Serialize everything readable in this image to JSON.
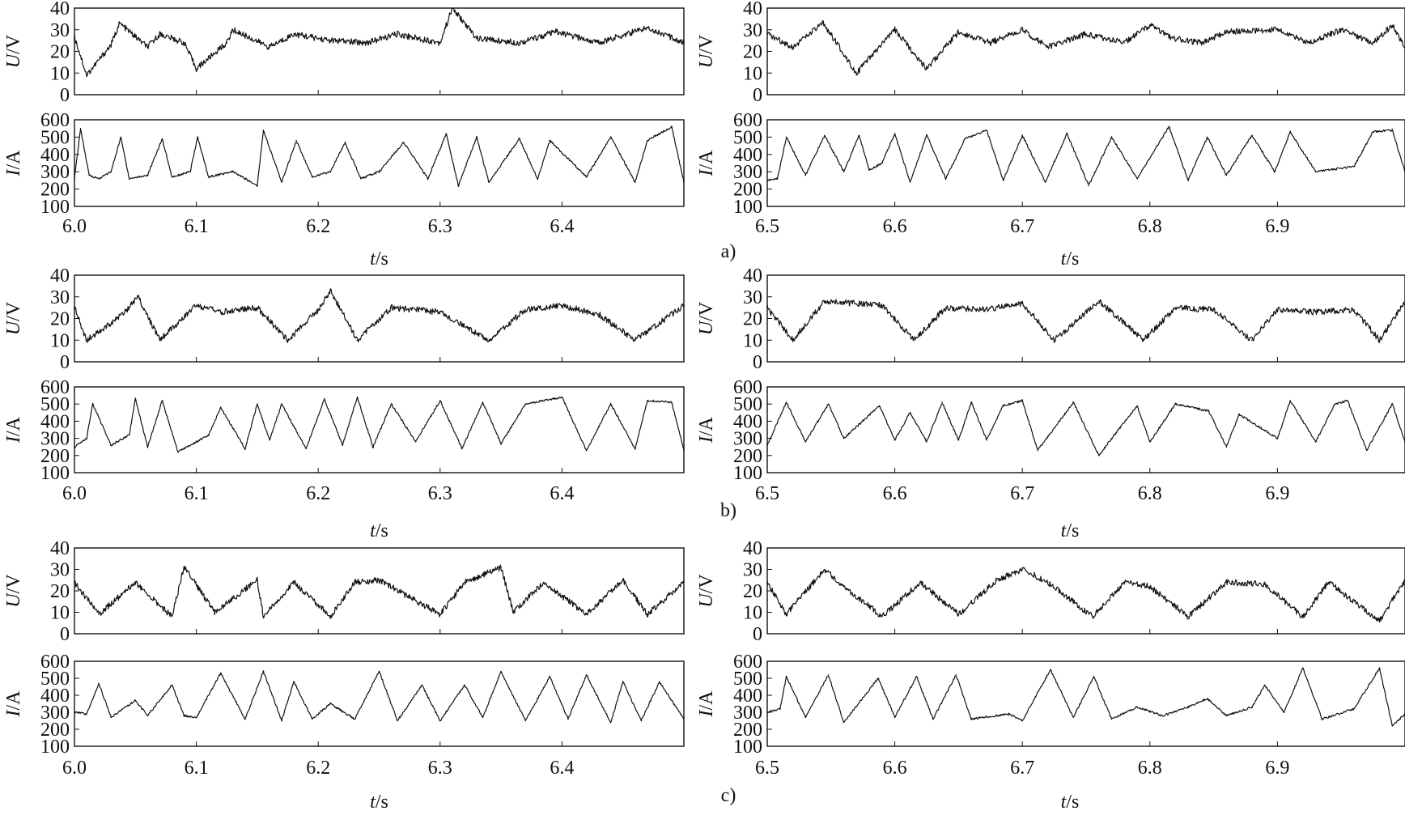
{
  "figure": {
    "panel_labels": [
      "a)",
      "b)",
      "c)"
    ],
    "sides": [
      {
        "x_ticks": [
          "6.0",
          "6.1",
          "6.2",
          "6.3",
          "6.4"
        ],
        "xlabel_italic": "t",
        "xlabel_unit": "/s"
      },
      {
        "x_ticks": [
          "6.5",
          "6.6",
          "6.7",
          "6.8",
          "6.9"
        ],
        "xlabel_italic": "t",
        "xlabel_unit": "/s"
      }
    ],
    "voltage_axis": {
      "ylabel_italic": "U",
      "ylabel_unit": "/V",
      "ticks": [
        "0",
        "10",
        "20",
        "30",
        "40"
      ]
    },
    "current_axis": {
      "ylabel_italic": "I",
      "ylabel_unit": "/A",
      "ticks": [
        "100",
        "200",
        "300",
        "400",
        "500",
        "600"
      ]
    }
  },
  "chart_data": [
    {
      "type": "line",
      "panel": "a) left",
      "signal": "voltage",
      "xlabel": "t/s",
      "ylabel": "U/V",
      "xlim": [
        6.0,
        6.5
      ],
      "ylim": [
        0,
        40
      ],
      "series": [
        {
          "x": [
            6.0,
            6.01,
            6.03,
            6.037,
            6.06,
            6.07,
            6.09,
            6.1,
            6.125,
            6.13,
            6.16,
            6.18,
            6.21,
            6.24,
            6.265,
            6.3,
            6.31,
            6.33,
            6.365,
            6.395,
            6.43,
            6.47,
            6.5
          ],
          "y": [
            27,
            9,
            23,
            33,
            22,
            28,
            24,
            12,
            24,
            30,
            22,
            28,
            25,
            24,
            28,
            24,
            40,
            26,
            24,
            29,
            24,
            31,
            24
          ]
        }
      ]
    },
    {
      "type": "line",
      "panel": "a) left",
      "signal": "current",
      "xlabel": "t/s",
      "ylabel": "I/A",
      "xlim": [
        6.0,
        6.5
      ],
      "ylim": [
        100,
        600
      ],
      "series": [
        {
          "x": [
            6.0,
            6.005,
            6.012,
            6.02,
            6.03,
            6.038,
            6.045,
            6.06,
            6.072,
            6.08,
            6.095,
            6.101,
            6.11,
            6.13,
            6.15,
            6.155,
            6.17,
            6.182,
            6.195,
            6.21,
            6.222,
            6.235,
            6.25,
            6.27,
            6.29,
            6.305,
            6.315,
            6.33,
            6.34,
            6.365,
            6.38,
            6.39,
            6.42,
            6.44,
            6.46,
            6.47,
            6.49,
            6.5
          ],
          "y": [
            260,
            550,
            280,
            260,
            300,
            500,
            260,
            280,
            490,
            270,
            300,
            500,
            270,
            300,
            220,
            540,
            240,
            480,
            270,
            300,
            470,
            260,
            300,
            470,
            260,
            520,
            220,
            500,
            240,
            490,
            260,
            480,
            270,
            500,
            240,
            480,
            560,
            240
          ]
        }
      ]
    },
    {
      "type": "line",
      "panel": "a) right",
      "signal": "voltage",
      "xlabel": "t/s",
      "ylabel": "U/V",
      "xlim": [
        6.5,
        7.0
      ],
      "ylim": [
        0,
        40
      ],
      "series": [
        {
          "x": [
            6.5,
            6.52,
            6.544,
            6.57,
            6.6,
            6.625,
            6.65,
            6.675,
            6.7,
            6.72,
            6.75,
            6.78,
            6.8,
            6.818,
            6.84,
            6.86,
            6.9,
            6.925,
            6.95,
            6.975,
            6.99,
            7.0
          ],
          "y": [
            28,
            22,
            33,
            10,
            30,
            12,
            29,
            24,
            30,
            22,
            28,
            24,
            32,
            26,
            24,
            29,
            30,
            24,
            30,
            24,
            32,
            22
          ]
        }
      ]
    },
    {
      "type": "line",
      "panel": "a) right",
      "signal": "current",
      "xlabel": "t/s",
      "ylabel": "I/A",
      "xlim": [
        6.5,
        7.0
      ],
      "ylim": [
        100,
        600
      ],
      "series": [
        {
          "x": [
            6.5,
            6.508,
            6.515,
            6.53,
            6.545,
            6.56,
            6.572,
            6.58,
            6.59,
            6.6,
            6.612,
            6.625,
            6.64,
            6.655,
            6.672,
            6.685,
            6.7,
            6.718,
            6.735,
            6.752,
            6.77,
            6.79,
            6.815,
            6.83,
            6.845,
            6.86,
            6.88,
            6.898,
            6.91,
            6.93,
            6.96,
            6.975,
            6.99,
            7.0
          ],
          "y": [
            250,
            260,
            500,
            280,
            510,
            300,
            510,
            310,
            350,
            520,
            240,
            510,
            260,
            490,
            540,
            250,
            510,
            240,
            520,
            220,
            500,
            260,
            560,
            250,
            500,
            280,
            510,
            300,
            530,
            300,
            330,
            530,
            540,
            300
          ]
        }
      ]
    },
    {
      "type": "line",
      "panel": "b) left",
      "signal": "voltage",
      "xlabel": "t/s",
      "ylabel": "U/V",
      "xlim": [
        6.0,
        6.5
      ],
      "ylim": [
        0,
        40
      ],
      "series": [
        {
          "x": [
            6.0,
            6.01,
            6.04,
            6.052,
            6.07,
            6.1,
            6.12,
            6.15,
            6.175,
            6.2,
            6.21,
            6.232,
            6.26,
            6.3,
            6.34,
            6.37,
            6.4,
            6.43,
            6.46,
            6.5
          ],
          "y": [
            25,
            10,
            22,
            30,
            10,
            26,
            23,
            25,
            10,
            24,
            33,
            10,
            25,
            23,
            10,
            24,
            26,
            22,
            10,
            26
          ]
        }
      ]
    },
    {
      "type": "line",
      "panel": "b) left",
      "signal": "current",
      "xlabel": "t/s",
      "ylabel": "I/A",
      "xlim": [
        6.0,
        6.5
      ],
      "ylim": [
        100,
        600
      ],
      "series": [
        {
          "x": [
            6.0,
            6.01,
            6.015,
            6.03,
            6.045,
            6.05,
            6.06,
            6.072,
            6.085,
            6.11,
            6.12,
            6.14,
            6.15,
            6.16,
            6.17,
            6.19,
            6.205,
            6.22,
            6.232,
            6.245,
            6.26,
            6.28,
            6.3,
            6.318,
            6.335,
            6.35,
            6.37,
            6.4,
            6.42,
            6.44,
            6.46,
            6.47,
            6.49,
            6.5
          ],
          "y": [
            250,
            300,
            500,
            260,
            320,
            530,
            250,
            520,
            220,
            320,
            480,
            240,
            500,
            290,
            500,
            240,
            530,
            260,
            540,
            250,
            500,
            280,
            520,
            240,
            510,
            270,
            500,
            540,
            230,
            500,
            240,
            520,
            510,
            230
          ]
        }
      ]
    },
    {
      "type": "line",
      "panel": "b) right",
      "signal": "voltage",
      "xlabel": "t/s",
      "ylabel": "U/V",
      "xlim": [
        6.5,
        7.0
      ],
      "ylim": [
        0,
        40
      ],
      "series": [
        {
          "x": [
            6.5,
            6.52,
            6.545,
            6.59,
            6.615,
            6.64,
            6.67,
            6.7,
            6.725,
            6.76,
            6.795,
            6.82,
            6.85,
            6.88,
            6.9,
            6.93,
            6.96,
            6.98,
            7.0
          ],
          "y": [
            25,
            10,
            28,
            26,
            10,
            25,
            24,
            27,
            10,
            28,
            10,
            25,
            24,
            10,
            24,
            23,
            24,
            10,
            28
          ]
        }
      ]
    },
    {
      "type": "line",
      "panel": "b) right",
      "signal": "current",
      "xlabel": "t/s",
      "ylabel": "I/A",
      "xlim": [
        6.5,
        7.0
      ],
      "ylim": [
        100,
        600
      ],
      "series": [
        {
          "x": [
            6.5,
            6.515,
            6.53,
            6.548,
            6.56,
            6.588,
            6.6,
            6.612,
            6.625,
            6.637,
            6.65,
            6.66,
            6.672,
            6.685,
            6.7,
            6.712,
            6.74,
            6.76,
            6.77,
            6.79,
            6.8,
            6.82,
            6.846,
            6.86,
            6.87,
            6.9,
            6.91,
            6.93,
            6.945,
            6.955,
            6.97,
            6.99,
            7.0
          ],
          "y": [
            260,
            510,
            280,
            500,
            300,
            490,
            290,
            450,
            280,
            510,
            290,
            510,
            290,
            490,
            520,
            230,
            510,
            200,
            300,
            490,
            280,
            500,
            460,
            250,
            440,
            300,
            520,
            280,
            500,
            520,
            230,
            500,
            280
          ]
        }
      ]
    },
    {
      "type": "line",
      "panel": "c) left",
      "signal": "voltage",
      "xlabel": "t/s",
      "ylabel": "U/V",
      "xlim": [
        6.0,
        6.5
      ],
      "ylim": [
        0,
        40
      ],
      "series": [
        {
          "x": [
            6.0,
            6.02,
            6.05,
            6.08,
            6.09,
            6.115,
            6.15,
            6.155,
            6.18,
            6.21,
            6.23,
            6.25,
            6.3,
            6.32,
            6.35,
            6.36,
            6.385,
            6.42,
            6.45,
            6.47,
            6.5
          ],
          "y": [
            24,
            9,
            24,
            8,
            31,
            10,
            25,
            8,
            24,
            8,
            24,
            25,
            9,
            24,
            31,
            10,
            24,
            9,
            25,
            9,
            24
          ]
        }
      ]
    },
    {
      "type": "line",
      "panel": "c) left",
      "signal": "current",
      "xlabel": "t/s",
      "ylabel": "I/A",
      "xlim": [
        6.0,
        6.5
      ],
      "ylim": [
        100,
        600
      ],
      "series": [
        {
          "x": [
            6.0,
            6.01,
            6.02,
            6.03,
            6.05,
            6.06,
            6.08,
            6.09,
            6.1,
            6.12,
            6.14,
            6.155,
            6.17,
            6.18,
            6.195,
            6.21,
            6.23,
            6.25,
            6.265,
            6.285,
            6.3,
            6.32,
            6.335,
            6.35,
            6.37,
            6.39,
            6.405,
            6.42,
            6.44,
            6.45,
            6.465,
            6.48,
            6.5
          ],
          "y": [
            300,
            290,
            470,
            270,
            370,
            280,
            460,
            280,
            270,
            530,
            260,
            540,
            250,
            480,
            260,
            350,
            260,
            540,
            250,
            460,
            250,
            460,
            270,
            540,
            250,
            510,
            260,
            520,
            240,
            480,
            250,
            480,
            260
          ]
        }
      ]
    },
    {
      "type": "line",
      "panel": "c) right",
      "signal": "voltage",
      "xlabel": "t/s",
      "ylabel": "U/V",
      "xlim": [
        6.5,
        7.0
      ],
      "ylim": [
        0,
        40
      ],
      "series": [
        {
          "x": [
            6.5,
            6.515,
            6.545,
            6.56,
            6.59,
            6.62,
            6.65,
            6.68,
            6.7,
            6.72,
            6.755,
            6.78,
            6.8,
            6.83,
            6.86,
            6.89,
            6.92,
            6.94,
            6.98,
            7.0
          ],
          "y": [
            24,
            9,
            30,
            22,
            8,
            24,
            9,
            25,
            30,
            24,
            8,
            24,
            22,
            8,
            24,
            23,
            8,
            24,
            6,
            25
          ]
        }
      ]
    },
    {
      "type": "line",
      "panel": "c) right",
      "signal": "current",
      "xlabel": "t/s",
      "ylabel": "I/A",
      "xlim": [
        6.5,
        7.0
      ],
      "ylim": [
        100,
        600
      ],
      "series": [
        {
          "x": [
            6.5,
            6.51,
            6.515,
            6.53,
            6.548,
            6.56,
            6.587,
            6.6,
            6.617,
            6.63,
            6.648,
            6.66,
            6.69,
            6.7,
            6.722,
            6.74,
            6.756,
            6.77,
            6.79,
            6.81,
            6.83,
            6.845,
            6.86,
            6.88,
            6.89,
            6.905,
            6.92,
            6.935,
            6.96,
            6.98,
            6.99,
            7.0
          ],
          "y": [
            300,
            320,
            510,
            270,
            520,
            240,
            500,
            270,
            510,
            260,
            520,
            260,
            290,
            250,
            550,
            270,
            510,
            260,
            330,
            280,
            330,
            380,
            280,
            330,
            460,
            300,
            560,
            260,
            320,
            560,
            220,
            290
          ]
        }
      ]
    }
  ]
}
